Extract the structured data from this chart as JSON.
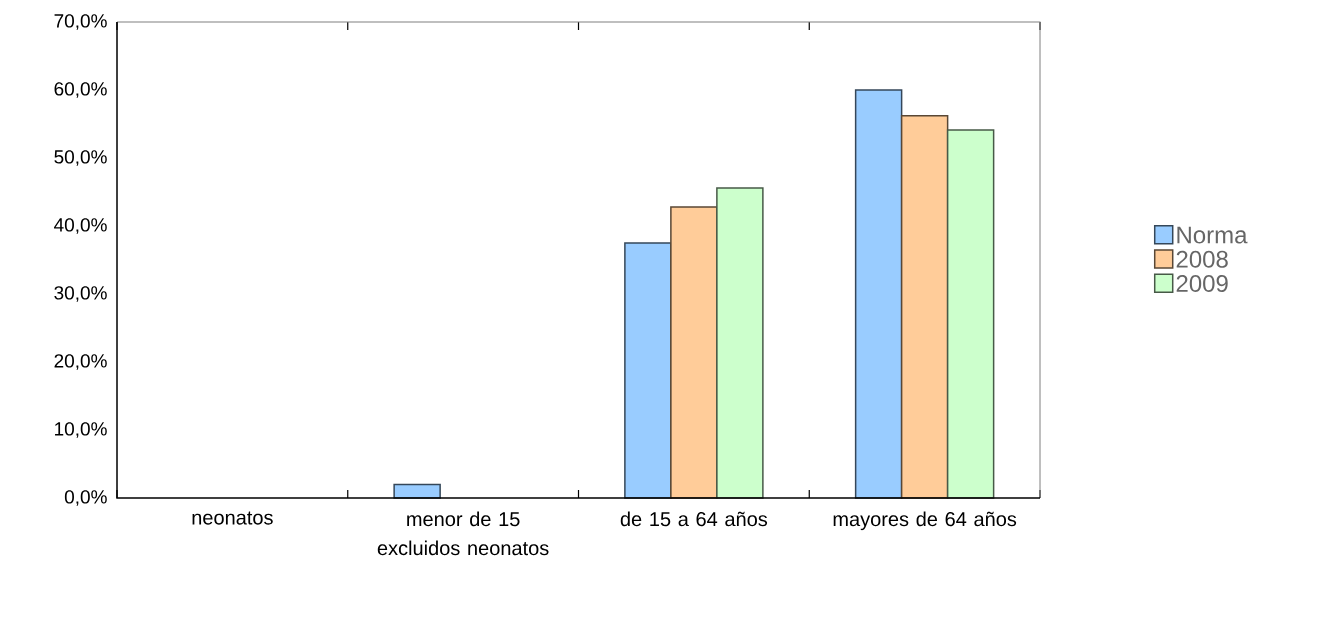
{
  "chart_data": {
    "type": "bar",
    "categories": [
      "neonatos",
      "menor de 15 excluidos neonatos",
      "de 15 a 64 años",
      "mayores de 64 años"
    ],
    "series": [
      {
        "name": "Norma",
        "color": "#99ccff",
        "values": [
          null,
          2.0,
          37.5,
          60.0
        ]
      },
      {
        "name": "2008",
        "color": "#ffcc99",
        "values": [
          null,
          null,
          42.8,
          56.2
        ]
      },
      {
        "name": "2009",
        "color": "#ccffcc",
        "values": [
          null,
          null,
          45.6,
          54.1
        ]
      }
    ],
    "ylim": [
      0,
      70
    ],
    "yticks": [
      {
        "value": 0,
        "label": "0,0%"
      },
      {
        "value": 10,
        "label": "10,0%"
      },
      {
        "value": 20,
        "label": "20,0%"
      },
      {
        "value": 30,
        "label": "30,0%"
      },
      {
        "value": 40,
        "label": "40,0%"
      },
      {
        "value": 50,
        "label": "50,0%"
      },
      {
        "value": 60,
        "label": "60,0%"
      },
      {
        "value": 70,
        "label": "70,0%"
      }
    ],
    "grid": false,
    "legend": "right"
  }
}
